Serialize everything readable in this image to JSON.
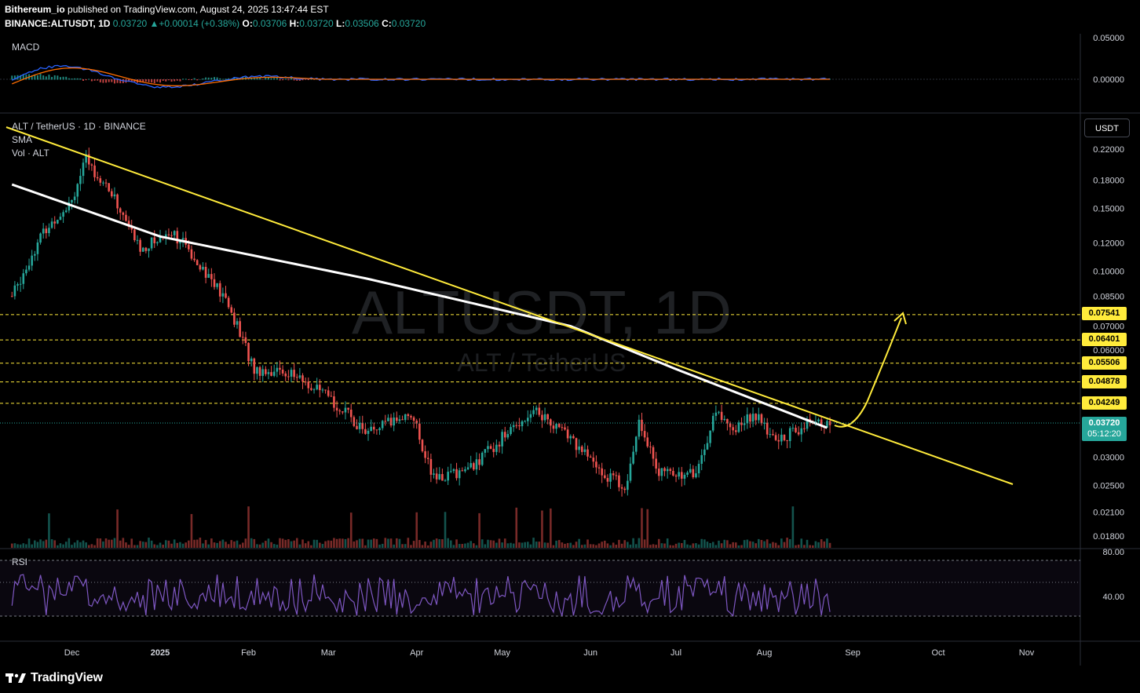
{
  "header": {
    "publisher": "Bithereum_io",
    "published_text": "published on TradingView.com, August 24, 2025 13:47:44 EST",
    "symbol": "BINANCE:ALTUSDT, 1D",
    "last": "0.03720",
    "change": "+0.00014 (+0.38%)",
    "o_label": "O:",
    "o_value": "0.03706",
    "h_label": "H:",
    "h_value": "0.03720",
    "l_label": "L:",
    "l_value": "0.03506",
    "c_label": "C:",
    "c_value": "0.03720"
  },
  "main_pane": {
    "title": "ALT / TetherUS · 1D · BINANCE",
    "indicators": [
      "SMA",
      "Vol · ALT"
    ],
    "watermark": "ALTUSDT, 1D",
    "watermark_sub": "ALT / TetherUS",
    "currency_button": "USDT"
  },
  "macd_pane": {
    "label": "MACD",
    "scale": [
      "0.05000",
      "0.00000"
    ]
  },
  "rsi_pane": {
    "label": "RSI",
    "scale": [
      "80.00",
      "40.00"
    ]
  },
  "price_scale": [
    "0.22000",
    "0.18000",
    "0.15000",
    "0.12000",
    "0.10000",
    "0.08500",
    "0.07000",
    "0.06000",
    "0.03000",
    "0.02500",
    "0.02100",
    "0.01800"
  ],
  "level_tags": [
    "0.07541",
    "0.06401",
    "0.05506",
    "0.04878",
    "0.04249"
  ],
  "current_price": {
    "price": "0.03720",
    "countdown": "05:12:20"
  },
  "time_axis": [
    "Dec",
    "2025",
    "Feb",
    "Mar",
    "Apr",
    "May",
    "Jun",
    "Jul",
    "Aug",
    "Sep",
    "Oct",
    "Nov"
  ],
  "colors": {
    "up": "#26a69a",
    "down": "#ef5350",
    "sma": "#ffffff",
    "trendline": "#ffeb3b",
    "rsi": "#7e57c2",
    "macd": "#2962ff",
    "signal": "#ff6d00"
  },
  "footer": {
    "brand": "TradingView"
  },
  "chart_data": {
    "type": "candlestick",
    "symbol": "ALTUSDT",
    "interval": "1D",
    "approx_daily_close": [
      {
        "date": "2024-11-10",
        "close": 0.085
      },
      {
        "date": "2024-11-20",
        "close": 0.125
      },
      {
        "date": "2024-12-01",
        "close": 0.16
      },
      {
        "date": "2024-12-06",
        "close": 0.205
      },
      {
        "date": "2024-12-15",
        "close": 0.165
      },
      {
        "date": "2024-12-25",
        "close": 0.115
      },
      {
        "date": "2025-01-05",
        "close": 0.13
      },
      {
        "date": "2025-01-15",
        "close": 0.105
      },
      {
        "date": "2025-01-25",
        "close": 0.08
      },
      {
        "date": "2025-02-03",
        "close": 0.053
      },
      {
        "date": "2025-02-15",
        "close": 0.052
      },
      {
        "date": "2025-03-01",
        "close": 0.044
      },
      {
        "date": "2025-03-15",
        "close": 0.035
      },
      {
        "date": "2025-03-30",
        "close": 0.04
      },
      {
        "date": "2025-04-07",
        "close": 0.026
      },
      {
        "date": "2025-04-20",
        "close": 0.028
      },
      {
        "date": "2025-05-01",
        "close": 0.034
      },
      {
        "date": "2025-05-12",
        "close": 0.041
      },
      {
        "date": "2025-05-25",
        "close": 0.034
      },
      {
        "date": "2025-06-05",
        "close": 0.027
      },
      {
        "date": "2025-06-14",
        "close": 0.025
      },
      {
        "date": "2025-06-18",
        "close": 0.039
      },
      {
        "date": "2025-06-25",
        "close": 0.027
      },
      {
        "date": "2025-07-08",
        "close": 0.027
      },
      {
        "date": "2025-07-15",
        "close": 0.04
      },
      {
        "date": "2025-07-22",
        "close": 0.036
      },
      {
        "date": "2025-07-28",
        "close": 0.04
      },
      {
        "date": "2025-08-05",
        "close": 0.033
      },
      {
        "date": "2025-08-15",
        "close": 0.037
      },
      {
        "date": "2025-08-24",
        "close": 0.0372
      }
    ],
    "sma_approx": [
      {
        "date": "2024-11-10",
        "value": 0.175
      },
      {
        "date": "2025-01-01",
        "value": 0.125
      },
      {
        "date": "2025-03-15",
        "value": 0.095
      },
      {
        "date": "2025-05-25",
        "value": 0.07
      },
      {
        "date": "2025-07-01",
        "value": 0.053
      },
      {
        "date": "2025-08-24",
        "value": 0.036
      }
    ],
    "horizontal_levels": [
      0.07541,
      0.06401,
      0.05506,
      0.04878,
      0.04249
    ],
    "projected_target": 0.07541,
    "y_scale": "log"
  }
}
